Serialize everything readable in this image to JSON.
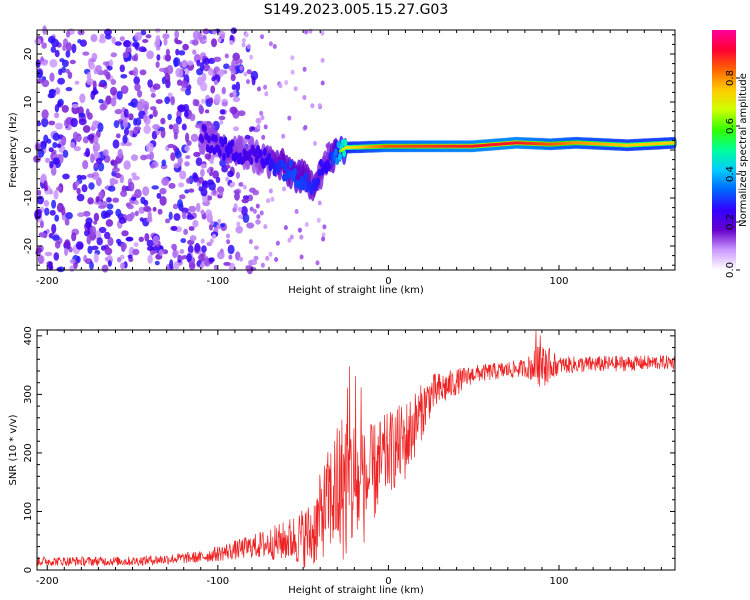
{
  "title": "S149.2023.005.15.27.G03",
  "chart_data": [
    {
      "type": "heatmap",
      "xlabel": "Height of straight line (km)",
      "ylabel": "Frequency (Hz)",
      "xlim": [
        -206,
        168
      ],
      "ylim": [
        -25,
        25
      ],
      "xticks": [
        -200,
        -100,
        0,
        100
      ],
      "yticks": [
        -20,
        -10,
        0,
        10,
        20
      ],
      "colorbar": {
        "label": "Normalized spectral amplitude",
        "range": [
          0,
          1
        ],
        "ticks": [
          "0.0",
          "0.2",
          "0.4",
          "0.6",
          "0.8"
        ],
        "colors": [
          "#ffffff",
          "#cc99ff",
          "#6600cc",
          "#3300ff",
          "#0066ff",
          "#00ccff",
          "#00ff99",
          "#33ff00",
          "#ccff00",
          "#ffcc00",
          "#ff6600",
          "#ff0033",
          "#ff0099"
        ]
      },
      "ridge": [
        {
          "x": -110,
          "y": 3,
          "amp": 0.3
        },
        {
          "x": -95,
          "y": 0,
          "amp": 0.35
        },
        {
          "x": -80,
          "y": -1,
          "amp": 0.3
        },
        {
          "x": -65,
          "y": -3,
          "amp": 0.4
        },
        {
          "x": -55,
          "y": -5,
          "amp": 0.45
        },
        {
          "x": -45,
          "y": -7,
          "amp": 0.4
        },
        {
          "x": -35,
          "y": -2,
          "amp": 0.35
        },
        {
          "x": -25,
          "y": 0.5,
          "amp": 0.7
        },
        {
          "x": 0,
          "y": 0.8,
          "amp": 0.85
        },
        {
          "x": 50,
          "y": 0.8,
          "amp": 0.9
        },
        {
          "x": 75,
          "y": 1.5,
          "amp": 0.9
        },
        {
          "x": 95,
          "y": 1.2,
          "amp": 0.85
        },
        {
          "x": 110,
          "y": 1.5,
          "amp": 0.8
        },
        {
          "x": 140,
          "y": 1.0,
          "amp": 0.75
        },
        {
          "x": 168,
          "y": 1.5,
          "amp": 0.75
        }
      ]
    },
    {
      "type": "line",
      "xlabel": "Height of straight line (km)",
      "ylabel": "SNR (10 * v/v)",
      "xlim": [
        -206,
        168
      ],
      "ylim": [
        0,
        410
      ],
      "xticks": [
        -200,
        -100,
        0,
        100
      ],
      "yticks": [
        0,
        100,
        200,
        300,
        400
      ],
      "color": "#ee2222",
      "envelope": [
        {
          "x": -206,
          "mean": 15,
          "noise": 8
        },
        {
          "x": -150,
          "mean": 15,
          "noise": 8
        },
        {
          "x": -110,
          "mean": 22,
          "noise": 10
        },
        {
          "x": -80,
          "mean": 40,
          "noise": 20
        },
        {
          "x": -60,
          "mean": 50,
          "noise": 35
        },
        {
          "x": -45,
          "mean": 60,
          "noise": 60
        },
        {
          "x": -35,
          "mean": 120,
          "noise": 90
        },
        {
          "x": -25,
          "mean": 150,
          "noise": 140
        },
        {
          "x": -15,
          "mean": 140,
          "noise": 100
        },
        {
          "x": 0,
          "mean": 200,
          "noise": 70
        },
        {
          "x": 10,
          "mean": 220,
          "noise": 70
        },
        {
          "x": 25,
          "mean": 300,
          "noise": 35
        },
        {
          "x": 50,
          "mean": 335,
          "noise": 15
        },
        {
          "x": 80,
          "mean": 345,
          "noise": 15
        },
        {
          "x": 90,
          "mean": 350,
          "noise": 40
        },
        {
          "x": 100,
          "mean": 350,
          "noise": 15
        },
        {
          "x": 168,
          "mean": 355,
          "noise": 12
        }
      ]
    }
  ]
}
